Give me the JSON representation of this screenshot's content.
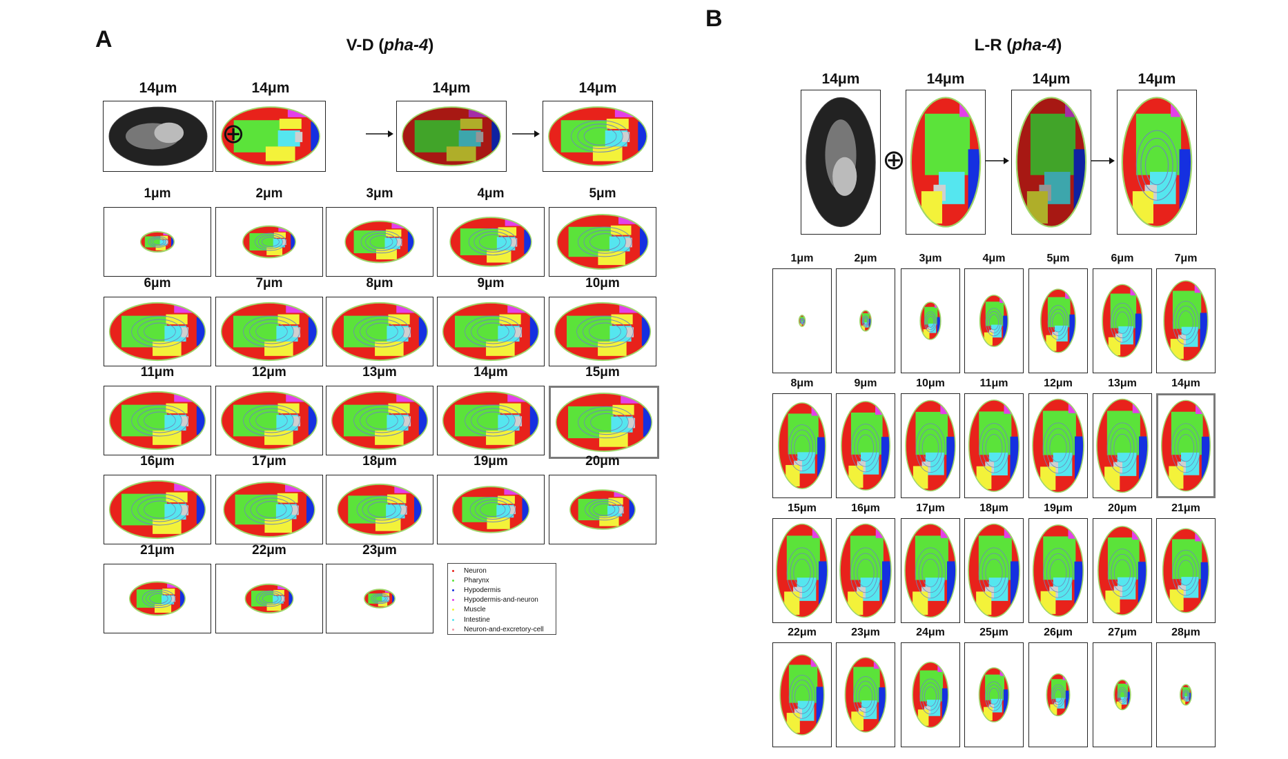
{
  "panelA": {
    "letter": "A",
    "title_prefix": "V-D (",
    "title_gene": "pha-4",
    "title_suffix": ")",
    "top_labels": [
      "14μm",
      "14μm",
      "14μm",
      "14μm"
    ],
    "grid_labels": [
      "1μm",
      "2μm",
      "3μm",
      "4μm",
      "5μm",
      "6μm",
      "7μm",
      "8μm",
      "9μm",
      "10μm",
      "11μm",
      "12μm",
      "13μm",
      "14μm",
      "15μm",
      "16μm",
      "17μm",
      "18μm",
      "19μm",
      "20μm",
      "21μm",
      "22μm",
      "23μm"
    ],
    "highlight_label": "15μm"
  },
  "panelB": {
    "letter": "B",
    "title_prefix": "L-R (",
    "title_gene": "pha-4",
    "title_suffix": ")",
    "top_labels": [
      "14μm",
      "14μm",
      "14μm",
      "14μm"
    ],
    "grid_labels": [
      "1μm",
      "2μm",
      "3μm",
      "4μm",
      "5μm",
      "6μm",
      "7μm",
      "8μm",
      "9μm",
      "10μm",
      "11μm",
      "12μm",
      "13μm",
      "14μm",
      "15μm",
      "16μm",
      "17μm",
      "18μm",
      "19μm",
      "20μm",
      "21μm",
      "22μm",
      "23μm",
      "24μm",
      "25μm",
      "26μm",
      "27μm",
      "28μm"
    ],
    "highlight_label": "14μm"
  },
  "legend": {
    "items": [
      {
        "label": "Neuron",
        "color": "#e8221b"
      },
      {
        "label": "Pharynx",
        "color": "#5be33a"
      },
      {
        "label": "Hypodermis",
        "color": "#1530e0"
      },
      {
        "label": "Hypodermis-and-neuron",
        "color": "#e340e8"
      },
      {
        "label": "Muscle",
        "color": "#f3f23a"
      },
      {
        "label": "Intestine",
        "color": "#55e6ef"
      },
      {
        "label": "Neuron-and-excretory-cell",
        "color": "#f19aa6"
      }
    ]
  },
  "colors": {
    "neuron": "#e8221b",
    "pharynx": "#5be33a",
    "hypodermis": "#1530e0",
    "hypodermis_and_neuron": "#e340e8",
    "muscle": "#f3f23a",
    "intestine": "#55e6ef",
    "neuron_and_excretory_cell": "#f19aa6",
    "gray_region": "#cfcfcf",
    "contour": "#6f86b8",
    "outline": "#9fd66a"
  }
}
